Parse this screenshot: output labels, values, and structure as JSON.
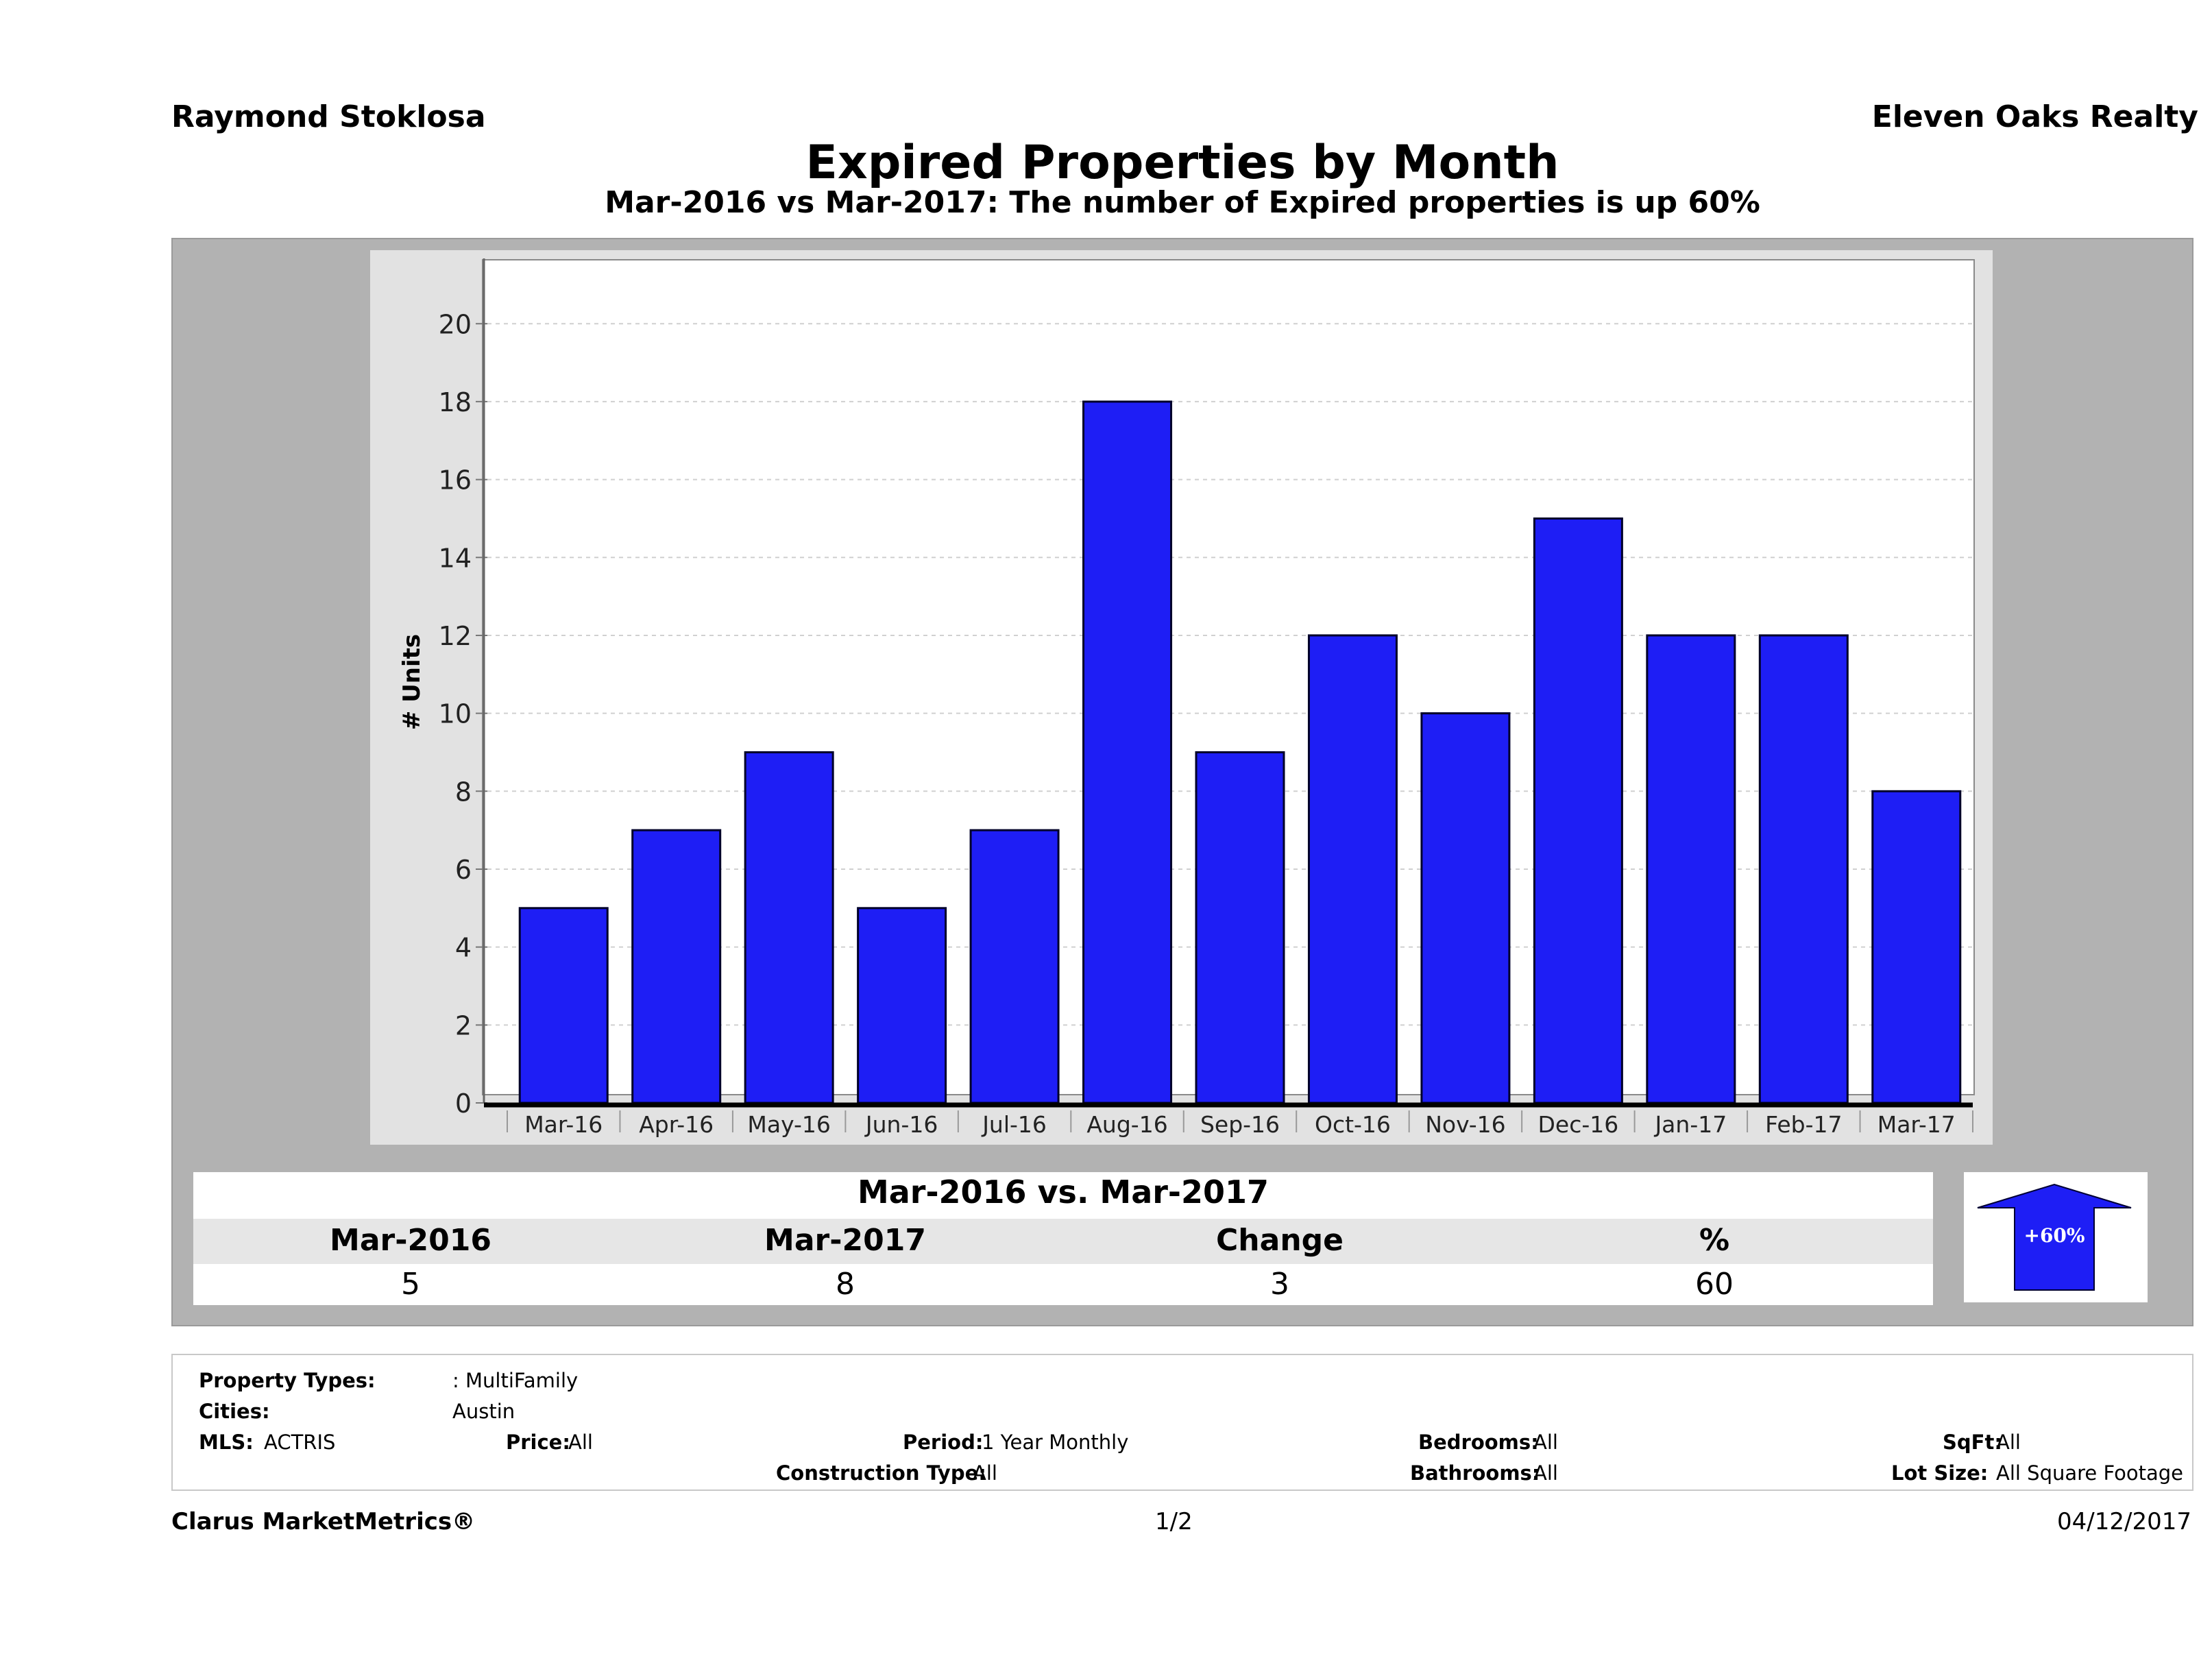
{
  "header": {
    "agent_name": "Raymond Stoklosa",
    "brokerage": "Eleven Oaks Realty",
    "title": "Expired Properties by Month",
    "subtitle": "Mar-2016 vs Mar-2017: The number of Expired  properties is up 60%"
  },
  "chart_data": {
    "type": "bar",
    "title": "Expired Properties by Month",
    "xlabel": "",
    "ylabel": "# Units",
    "ylim": [
      0,
      21.5
    ],
    "yticks": [
      0,
      2,
      4,
      6,
      8,
      10,
      12,
      14,
      16,
      18,
      20
    ],
    "grid": true,
    "categories": [
      "Mar-16",
      "Apr-16",
      "May-16",
      "Jun-16",
      "Jul-16",
      "Aug-16",
      "Sep-16",
      "Oct-16",
      "Nov-16",
      "Dec-16",
      "Jan-17",
      "Feb-17",
      "Mar-17"
    ],
    "values": [
      5,
      7,
      9,
      5,
      7,
      18,
      9,
      12,
      10,
      15,
      12,
      12,
      8
    ],
    "bar_color": "#1e1ef5"
  },
  "summary": {
    "title": "Mar-2016 vs. Mar-2017",
    "headers": [
      "Mar-2016",
      "Mar-2017",
      "Change",
      "%"
    ],
    "values": [
      "5",
      "8",
      "3",
      "60"
    ],
    "badge": "+60%",
    "badge_color": "#1e1ef5"
  },
  "criteria": {
    "property_types_label": "Property Types:",
    "property_types_value": ": MultiFamily",
    "cities_label": "Cities:",
    "cities_value": "Austin",
    "mls_label": "MLS:",
    "mls_value": "ACTRIS",
    "price_label": "Price:",
    "price_value": "All",
    "period_label": "Period:",
    "period_value": "1 Year Monthly",
    "construction_label": "Construction Type:",
    "construction_value": "All",
    "bedrooms_label": "Bedrooms:",
    "bedrooms_value": "All",
    "bathrooms_label": "Bathrooms:",
    "bathrooms_value": "All",
    "sqft_label": "SqFt:",
    "sqft_value": "All",
    "lotsize_label": "Lot Size:",
    "lotsize_value": "All Square Footage"
  },
  "footer": {
    "brand": "Clarus MarketMetrics®",
    "page": "1/2",
    "date": "04/12/2017"
  }
}
